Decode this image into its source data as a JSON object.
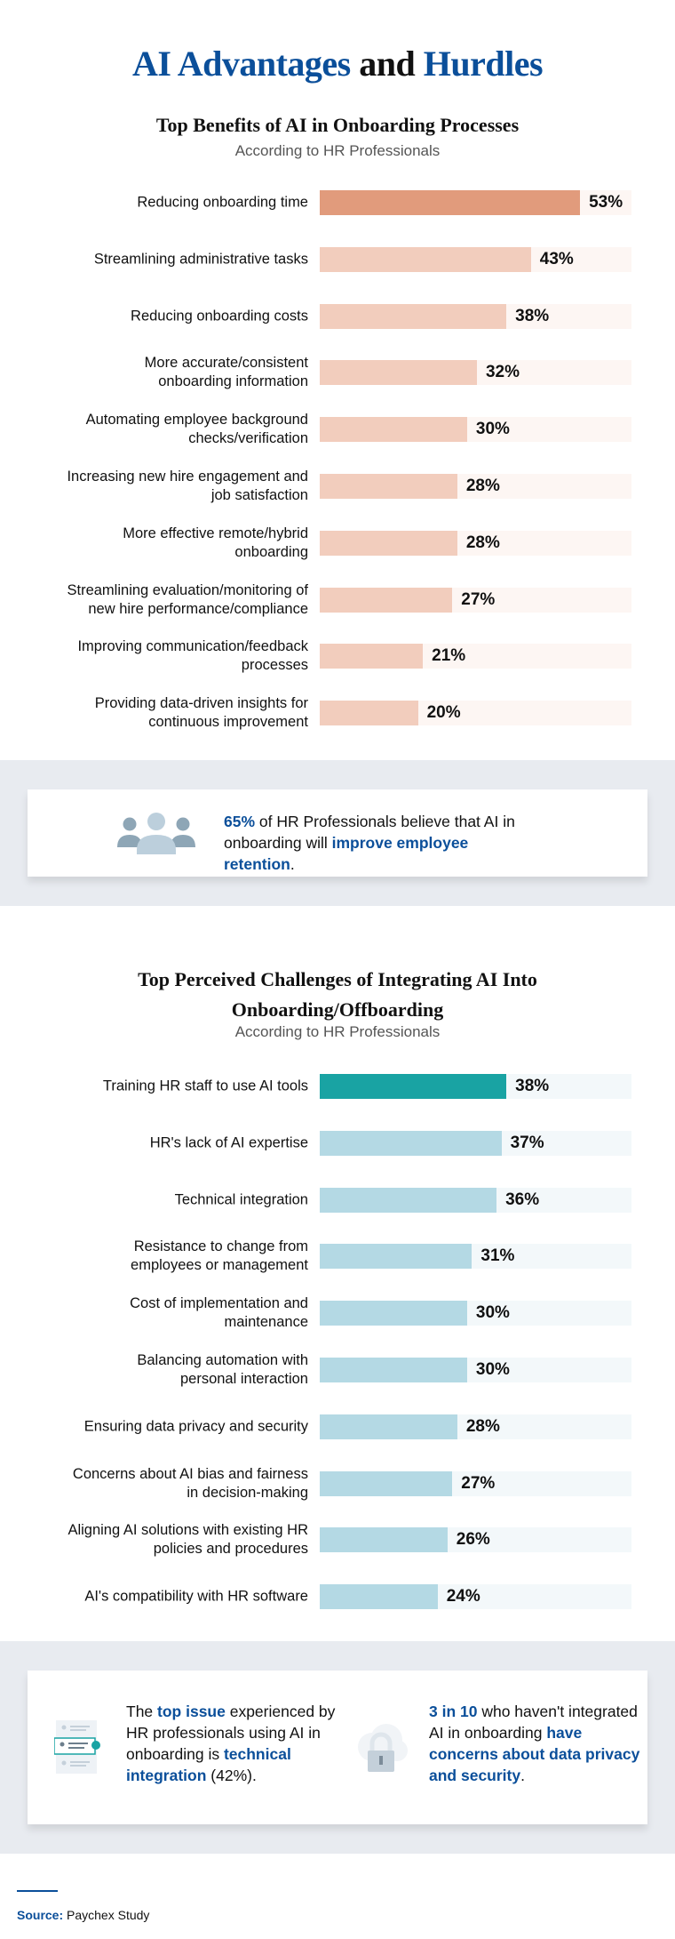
{
  "title": {
    "part1": "AI Advantages",
    "part2": " and ",
    "part3": "Hurdles"
  },
  "colors": {
    "brand_blue": "#0b4f9a",
    "benefit_top": "#e19b7c",
    "benefit_bar": "#f2cdbd",
    "benefit_track": "#fdf6f3",
    "challenge_top": "#19a3a3",
    "challenge_bar": "#b4d9e4",
    "challenge_track": "#f3f8fa",
    "band": "#e8ebf0"
  },
  "chart_data": [
    {
      "type": "bar",
      "orientation": "horizontal",
      "title": "Top Benefits of AI in Onboarding Processes",
      "subtitle": "According to HR Professionals",
      "categories": [
        "Reducing onboarding time",
        "Streamlining administrative tasks",
        "Reducing onboarding costs",
        "More accurate/consistent onboarding information",
        "Automating employee background checks/verification",
        "Increasing new hire engagement and job satisfaction",
        "More effective remote/hybrid onboarding",
        "Streamlining evaluation/monitoring of new hire performance/compliance",
        "Improving communication/feedback processes",
        "Providing data-driven insights for continuous improvement"
      ],
      "label_lines": [
        [
          "Reducing onboarding time"
        ],
        [
          "Streamlining administrative tasks"
        ],
        [
          "Reducing onboarding costs"
        ],
        [
          "More accurate/consistent",
          "onboarding information"
        ],
        [
          "Automating employee background",
          "checks/verification"
        ],
        [
          "Increasing new hire engagement and",
          "job satisfaction"
        ],
        [
          "More effective remote/hybrid",
          "onboarding"
        ],
        [
          "Streamlining evaluation/monitoring of",
          "new hire performance/compliance"
        ],
        [
          "Improving communication/feedback",
          "processes"
        ],
        [
          "Providing data-driven insights for",
          "continuous improvement"
        ]
      ],
      "values": [
        53,
        43,
        38,
        32,
        30,
        28,
        28,
        27,
        21,
        20
      ],
      "value_labels": [
        "53%",
        "43%",
        "38%",
        "32%",
        "30%",
        "28%",
        "28%",
        "27%",
        "21%",
        "20%"
      ],
      "unit": "%",
      "grid": false
    },
    {
      "type": "bar",
      "orientation": "horizontal",
      "title": "Top Perceived Challenges of Integrating AI Into Onboarding/Offboarding",
      "title_lines": [
        "Top Perceived Challenges of Integrating AI Into",
        "Onboarding/Offboarding"
      ],
      "subtitle": "According to HR Professionals",
      "categories": [
        "Training HR staff to use AI tools",
        "HR's lack of AI expertise",
        "Technical integration",
        "Resistance to change from employees or management",
        "Cost of implementation and maintenance",
        "Balancing automation with personal interaction",
        "Ensuring data privacy and security",
        "Concerns about AI bias and fairness in decision-making",
        "Aligning AI solutions with existing HR policies and procedures",
        "AI's compatibility with HR software"
      ],
      "label_lines": [
        [
          "Training HR staff to use AI tools"
        ],
        [
          "HR's lack of AI expertise"
        ],
        [
          "Technical integration"
        ],
        [
          "Resistance to change from",
          "employees or management"
        ],
        [
          "Cost of implementation and",
          "maintenance"
        ],
        [
          "Balancing automation with",
          "personal interaction"
        ],
        [
          "Ensuring data privacy and security"
        ],
        [
          "Concerns about AI bias and fairness",
          "in decision-making"
        ],
        [
          "Aligning AI solutions with existing HR",
          "policies and procedures"
        ],
        [
          "AI's compatibility with HR software"
        ]
      ],
      "values": [
        38,
        37,
        36,
        31,
        30,
        30,
        28,
        27,
        26,
        24
      ],
      "value_labels": [
        "38%",
        "37%",
        "36%",
        "31%",
        "30%",
        "30%",
        "28%",
        "27%",
        "26%",
        "24%"
      ],
      "unit": "%",
      "grid": false
    }
  ],
  "callout1": {
    "icon": "people-group-icon",
    "stat": "65%",
    "text_a": " of HR Professionals believe that AI in onboarding will ",
    "highlight": "improve employee retention",
    "text_b": "."
  },
  "callout2": {
    "left": {
      "icon": "checklist-user-icon",
      "t1": "The ",
      "h1": "top issue",
      "t2": " experienced by HR professionals using AI in onboarding is ",
      "h2": "technical integration",
      "t3": " (42%)."
    },
    "right": {
      "icon": "cloud-lock-icon",
      "h1": "3 in 10",
      "t1": " who haven't integrated AI in onboarding ",
      "h2": "have concerns about data privacy and security",
      "t2": "."
    }
  },
  "source": {
    "label": "Source:",
    "text": " Paychex Study"
  }
}
